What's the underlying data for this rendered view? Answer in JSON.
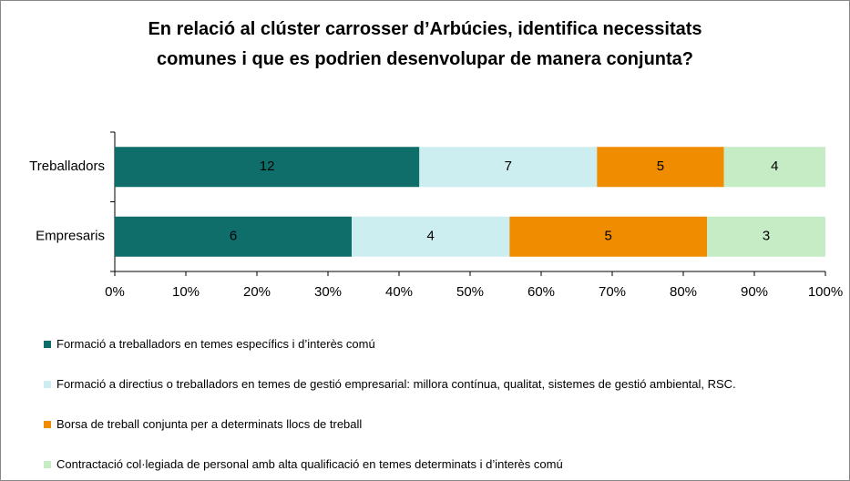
{
  "chart_data": {
    "type": "bar",
    "orientation": "horizontal",
    "stacking": "percent",
    "title": "En relació al clúster carrosser d’Arbúcies, identifica necessitats comunes i que es podrien desenvolupar de manera conjunta?",
    "categories": [
      "Treballadors",
      "Empresaris"
    ],
    "series": [
      {
        "name": "Formació a treballadors en temes específics i d’interès comú",
        "color": "#0f6e6a",
        "values": [
          12,
          6
        ]
      },
      {
        "name": "Formació a directius o treballadors en temes de gestió empresarial: millora contínua, qualitat, sistemes de gestió ambiental, RSC.",
        "color": "#cdeef0",
        "values": [
          7,
          4
        ]
      },
      {
        "name": "Borsa de treball conjunta per a determinats llocs de treball",
        "color": "#f08c00",
        "values": [
          5,
          5
        ]
      },
      {
        "name": "Contractació col·legiada de personal amb alta qualificació en temes determinats i d’interès comú",
        "color": "#c6ecc6",
        "values": [
          4,
          3
        ]
      }
    ],
    "xlim": [
      0,
      100
    ],
    "xticks": [
      {
        "value": 0,
        "label": "0%"
      },
      {
        "value": 10,
        "label": "10%"
      },
      {
        "value": 20,
        "label": "20%"
      },
      {
        "value": 30,
        "label": "30%"
      },
      {
        "value": 40,
        "label": "40%"
      },
      {
        "value": 50,
        "label": "50%"
      },
      {
        "value": 60,
        "label": "60%"
      },
      {
        "value": 70,
        "label": "70%"
      },
      {
        "value": 80,
        "label": "80%"
      },
      {
        "value": 90,
        "label": "90%"
      },
      {
        "value": 100,
        "label": "100%"
      }
    ],
    "legend": "bottom"
  }
}
